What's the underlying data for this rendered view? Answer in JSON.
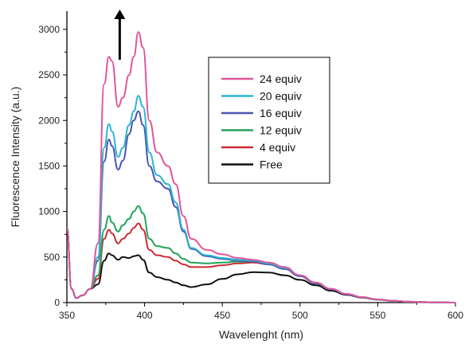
{
  "chart_data": {
    "type": "line",
    "title": "",
    "xlabel": "Wavelenght (nm)",
    "ylabel": "Fluorescence Intensity (a.u.)",
    "xlim": [
      350,
      600
    ],
    "ylim": [
      0,
      3200
    ],
    "xticks": [
      350,
      400,
      450,
      500,
      550,
      600
    ],
    "yticks": [
      0,
      500,
      1000,
      1500,
      2000,
      2500,
      3000
    ],
    "grid": false,
    "legend_position": "top-right",
    "annotation": "upward arrow near 384 nm indicating increasing intensity",
    "x": [
      350,
      353,
      356,
      360,
      365,
      370,
      374,
      377,
      379,
      383,
      386,
      390,
      393,
      396,
      399,
      403,
      408,
      415,
      420,
      425,
      430,
      440,
      450,
      460,
      470,
      480,
      490,
      500,
      510,
      520,
      530,
      540,
      550,
      560,
      570,
      580,
      590,
      600
    ],
    "series": [
      {
        "name": "24 equiv",
        "color": "#e0569a",
        "values": [
          820,
          150,
          50,
          80,
          150,
          650,
          2400,
          2700,
          2650,
          2150,
          2250,
          2500,
          2700,
          2970,
          2800,
          2000,
          1650,
          1500,
          1300,
          950,
          700,
          580,
          530,
          490,
          470,
          440,
          390,
          300,
          220,
          150,
          95,
          60,
          35,
          20,
          10,
          5,
          2,
          0
        ]
      },
      {
        "name": "20 equiv",
        "color": "#2cb5d3",
        "values": [
          820,
          150,
          50,
          80,
          150,
          500,
          1700,
          1960,
          1880,
          1600,
          1700,
          1950,
          2100,
          2270,
          2150,
          1650,
          1400,
          1300,
          1100,
          800,
          600,
          520,
          490,
          470,
          460,
          430,
          380,
          300,
          220,
          150,
          95,
          60,
          35,
          20,
          10,
          5,
          2,
          0
        ]
      },
      {
        "name": "16 equiv",
        "color": "#4a56b0",
        "values": [
          820,
          150,
          50,
          80,
          150,
          460,
          1550,
          1790,
          1720,
          1460,
          1560,
          1850,
          2000,
          2100,
          1950,
          1500,
          1330,
          1250,
          1050,
          780,
          590,
          510,
          480,
          460,
          450,
          420,
          370,
          290,
          210,
          145,
          92,
          58,
          34,
          19,
          10,
          5,
          2,
          0
        ]
      },
      {
        "name": "12 equiv",
        "color": "#22a35a",
        "values": [
          820,
          150,
          50,
          80,
          150,
          300,
          800,
          950,
          880,
          780,
          850,
          920,
          1000,
          1060,
          980,
          700,
          620,
          600,
          540,
          480,
          440,
          430,
          440,
          450,
          450,
          420,
          370,
          290,
          210,
          145,
          92,
          58,
          34,
          19,
          10,
          5,
          2,
          0
        ]
      },
      {
        "name": "4 equiv",
        "color": "#cc2b36",
        "values": [
          820,
          150,
          50,
          80,
          150,
          260,
          700,
          800,
          760,
          650,
          700,
          760,
          820,
          870,
          800,
          580,
          520,
          500,
          460,
          420,
          390,
          390,
          410,
          430,
          440,
          420,
          370,
          290,
          210,
          145,
          92,
          58,
          34,
          19,
          10,
          5,
          2,
          0
        ]
      },
      {
        "name": "Free",
        "color": "#111111",
        "values": [
          820,
          150,
          50,
          80,
          150,
          200,
          460,
          540,
          520,
          470,
          500,
          490,
          510,
          520,
          470,
          330,
          280,
          250,
          220,
          190,
          170,
          200,
          260,
          310,
          335,
          330,
          300,
          250,
          190,
          130,
          85,
          55,
          32,
          18,
          9,
          4,
          2,
          0
        ]
      }
    ]
  }
}
